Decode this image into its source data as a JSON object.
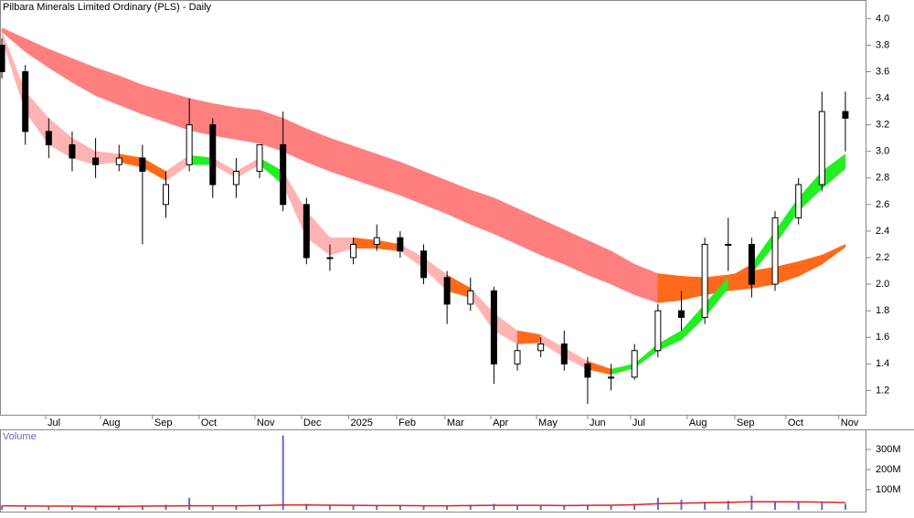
{
  "chart_data": {
    "type": "candlestick",
    "title": "Pilbara Minerals Limited Ordinary (PLS) - Daily",
    "volume_title": "Volume",
    "xlim": [
      -0.08,
      36.9
    ],
    "xticks": [
      {
        "value": 1.87,
        "label": "Jul"
      },
      {
        "value": 4.21,
        "label": "Aug"
      },
      {
        "value": 6.43,
        "label": "Sep"
      },
      {
        "value": 8.42,
        "label": "Oct"
      },
      {
        "value": 10.8,
        "label": "Nov"
      },
      {
        "value": 12.79,
        "label": "Dec"
      },
      {
        "value": 14.8,
        "label": "2025"
      },
      {
        "value": 16.85,
        "label": "Feb"
      },
      {
        "value": 18.91,
        "label": "Mar"
      },
      {
        "value": 20.87,
        "label": "Apr"
      },
      {
        "value": 22.82,
        "label": "May"
      },
      {
        "value": 25.0,
        "label": "Jun"
      },
      {
        "value": 26.83,
        "label": "Jul"
      },
      {
        "value": 29.25,
        "label": "Aug"
      },
      {
        "value": 31.28,
        "label": "Sep"
      },
      {
        "value": 33.46,
        "label": "Oct"
      },
      {
        "value": 35.72,
        "label": "Nov"
      }
    ],
    "ylim": [
      1.01,
      4.14
    ],
    "yticks": [
      1.2,
      1.4,
      1.6,
      1.8,
      {
        "value": 2,
        "label": "2.0"
      },
      2.2,
      2.4,
      2.6,
      2.8,
      {
        "value": 3,
        "label": "3.0"
      },
      3.2,
      3.4,
      3.6,
      3.8,
      {
        "value": 4,
        "label": "4.0"
      }
    ],
    "open": [
      3.8,
      3.6,
      3.15,
      3.05,
      2.95,
      2.9,
      2.95,
      2.6,
      2.9,
      3.2,
      2.75,
      2.85,
      3.05,
      2.6,
      2.2,
      2.2,
      2.3,
      2.35,
      2.25,
      2.05,
      1.85,
      1.95,
      1.4,
      1.5,
      1.55,
      1.4,
      1.3,
      1.3,
      1.5,
      1.8,
      1.75,
      2.3,
      2.3,
      2.0,
      2.5,
      2.75,
      3.3
    ],
    "high": [
      3.85,
      3.65,
      3.25,
      3.15,
      3.1,
      3.05,
      3.05,
      2.85,
      3.4,
      3.25,
      2.95,
      3.05,
      3.3,
      2.65,
      2.3,
      2.35,
      2.45,
      2.4,
      2.3,
      2.1,
      2.05,
      1.98,
      1.55,
      1.6,
      1.65,
      1.45,
      1.4,
      1.55,
      1.85,
      1.95,
      2.35,
      2.5,
      2.35,
      2.55,
      2.8,
      3.45,
      3.45
    ],
    "low": [
      3.55,
      3.05,
      2.95,
      2.85,
      2.8,
      2.85,
      2.3,
      2.5,
      2.85,
      2.65,
      2.65,
      2.8,
      2.55,
      2.15,
      2.1,
      2.15,
      2.25,
      2.2,
      2.0,
      1.7,
      1.8,
      1.25,
      1.35,
      1.45,
      1.35,
      1.1,
      1.2,
      1.28,
      1.45,
      1.65,
      1.7,
      2.1,
      1.9,
      1.95,
      2.45,
      2.7,
      3.0
    ],
    "close": [
      3.6,
      3.15,
      3.05,
      2.95,
      2.9,
      2.95,
      2.85,
      2.75,
      3.2,
      2.75,
      2.85,
      3.05,
      2.6,
      2.2,
      2.2,
      2.3,
      2.35,
      2.25,
      2.05,
      1.85,
      1.95,
      1.4,
      1.5,
      1.55,
      1.4,
      1.3,
      1.3,
      1.5,
      1.8,
      1.75,
      2.3,
      2.3,
      2.0,
      2.5,
      2.75,
      3.3,
      3.25
    ],
    "bands": [
      {
        "upper": [
          3.93,
          3.85,
          3.77,
          3.7,
          3.63,
          3.57,
          3.5,
          3.45,
          3.4,
          3.36,
          3.33,
          3.31,
          3.25,
          3.17,
          3.1,
          3.04,
          2.98,
          2.92,
          2.85,
          2.78,
          2.71,
          2.65,
          2.57,
          2.49,
          2.41,
          2.33,
          2.25,
          2.15,
          2.08,
          2.06,
          2.05,
          2.07,
          2.1,
          2.13,
          2.17,
          2.22,
          2.3
        ],
        "lower": [
          3.9,
          3.75,
          3.63,
          3.52,
          3.42,
          3.35,
          3.28,
          3.22,
          3.16,
          3.12,
          3.09,
          3.06,
          3.0,
          2.92,
          2.85,
          2.79,
          2.73,
          2.67,
          2.6,
          2.53,
          2.45,
          2.38,
          2.3,
          2.22,
          2.15,
          2.07,
          2.0,
          1.92,
          1.86,
          1.88,
          1.92,
          1.95,
          1.97,
          2.0,
          2.06,
          2.15,
          2.28
        ],
        "colors": [
          "#ff7f7f",
          "#ff7f7f",
          "#ff7f7f",
          "#ff7f7f",
          "#ff7f7f",
          "#ff7f7f",
          "#ff7f7f",
          "#ff7f7f",
          "#ff7f7f",
          "#ff7f7f",
          "#ff7f7f",
          "#ff7f7f",
          "#ff7f7f",
          "#ff7f7f",
          "#ff7f7f",
          "#ff7f7f",
          "#ff7f7f",
          "#ff7f7f",
          "#ff7f7f",
          "#ff7f7f",
          "#ff7f7f",
          "#ff7f7f",
          "#ff7f7f",
          "#ff7f7f",
          "#ff7f7f",
          "#ff7f7f",
          "#ff7f7f",
          "#ff7f7f",
          "#ff6a1a",
          "#ff6a1a",
          "#ff6a1a",
          "#ff6a1a",
          "#ff6a1a",
          "#ff6a1a",
          "#ff6a1a",
          "#ff6a1a",
          "#ff6a1a"
        ]
      },
      {
        "upper": [
          3.9,
          3.45,
          3.25,
          3.1,
          3.0,
          2.98,
          2.95,
          2.85,
          2.97,
          2.95,
          2.85,
          2.95,
          2.85,
          2.55,
          2.35,
          2.35,
          2.33,
          2.3,
          2.2,
          2.07,
          1.97,
          1.78,
          1.65,
          1.62,
          1.52,
          1.42,
          1.36,
          1.4,
          1.55,
          1.65,
          1.85,
          2.05,
          2.15,
          2.4,
          2.65,
          2.85,
          2.98
        ],
        "lower": [
          3.85,
          3.3,
          3.05,
          2.95,
          2.9,
          2.92,
          2.88,
          2.78,
          2.9,
          2.9,
          2.8,
          2.9,
          2.75,
          2.35,
          2.22,
          2.27,
          2.27,
          2.25,
          2.12,
          1.95,
          1.9,
          1.65,
          1.55,
          1.56,
          1.45,
          1.36,
          1.32,
          1.37,
          1.5,
          1.58,
          1.75,
          1.97,
          2.08,
          2.3,
          2.55,
          2.72,
          2.87
        ],
        "colors": [
          "#ffb3b3",
          "#ffb3b3",
          "#ffb3b3",
          "#ffb3b3",
          "#ffb3b3",
          "#ff6a1a",
          "#ff6a1a",
          "#ffb3b3",
          "#22ee22",
          "#ffb3b3",
          "#ffb3b3",
          "#22ee22",
          "#ffb3b3",
          "#ffb3b3",
          "#ffb3b3",
          "#ff6a1a",
          "#ff6a1a",
          "#ffb3b3",
          "#ffb3b3",
          "#ff6a1a",
          "#ffb3b3",
          "#ffb3b3",
          "#ff6a1a",
          "#ffb3b3",
          "#ffb3b3",
          "#ff6a1a",
          "#22ee22",
          "#22ee22",
          "#22ee22",
          "#22ee22",
          "#22ee22",
          "#ff6a1a",
          "#22ee22",
          "#22ee22",
          "#22ee22",
          "#22ee22",
          "#22ee22"
        ]
      }
    ],
    "volume": [
      20,
      15,
      15,
      15,
      15,
      18,
      20,
      25,
      60,
      20,
      20,
      25,
      370,
      30,
      20,
      20,
      20,
      20,
      20,
      20,
      25,
      30,
      20,
      20,
      20,
      25,
      25,
      30,
      60,
      50,
      40,
      45,
      70,
      40,
      40,
      40,
      30
    ],
    "volume_ma": [
      20,
      19,
      18,
      18,
      17,
      17,
      18,
      19,
      20,
      20,
      20,
      21,
      24,
      24,
      23,
      22,
      21,
      21,
      20,
      20,
      21,
      22,
      22,
      22,
      21,
      22,
      23,
      25,
      30,
      33,
      35,
      37,
      40,
      40,
      39,
      38,
      36
    ],
    "volume_color": "#6666cc",
    "volume_ma_color": "#dd2222",
    "volume_ylim": [
      0,
      400
    ],
    "volume_yticks": [
      {
        "value": 100,
        "label": "100M"
      },
      {
        "value": 200,
        "label": "200M"
      },
      {
        "value": 300,
        "label": "300M"
      }
    ]
  }
}
